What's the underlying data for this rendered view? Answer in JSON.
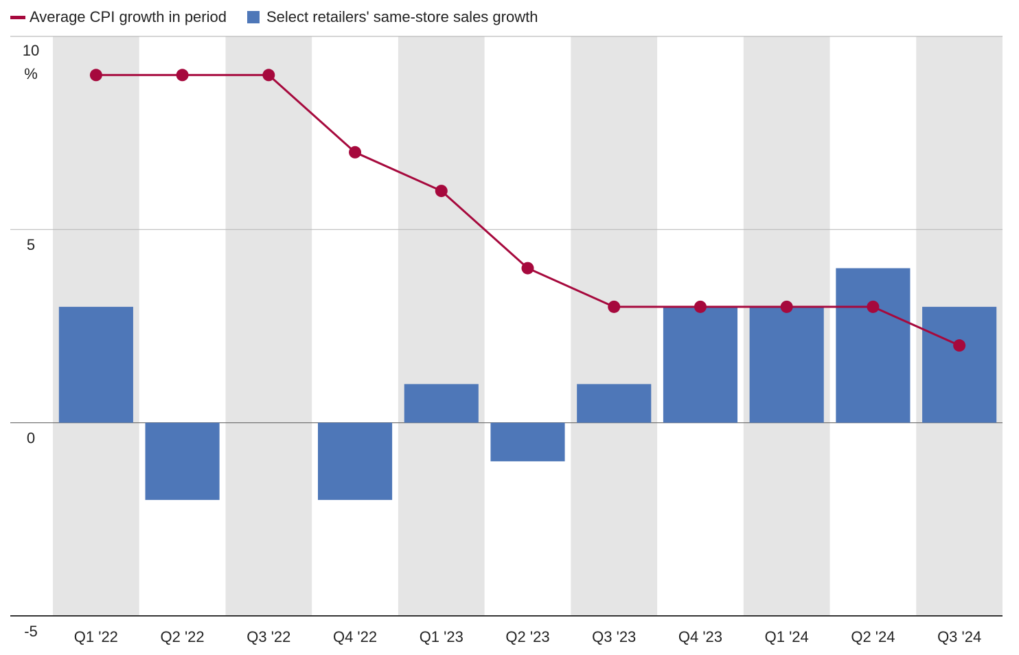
{
  "chart_data": {
    "type": "bar-line",
    "categories": [
      "Q1 '22",
      "Q2 '22",
      "Q3 '22",
      "Q4 '22",
      "Q1 '23",
      "Q2 '23",
      "Q3 '23",
      "Q4 '23",
      "Q1 '24",
      "Q2 '24",
      "Q3 '24"
    ],
    "series": [
      {
        "name": "Average CPI growth in period",
        "type": "line",
        "color": "#a6093d",
        "values": [
          9,
          9,
          9,
          7,
          6,
          4,
          3,
          3,
          3,
          3,
          2
        ]
      },
      {
        "name": "Select retailers' same-store sales growth",
        "type": "bar",
        "color": "#4e77b8",
        "values": [
          3,
          -2,
          0,
          -2,
          1,
          -1,
          1,
          3,
          3,
          4,
          3
        ]
      }
    ],
    "ylim": [
      -5,
      10
    ],
    "yticks": [
      -5,
      0,
      5,
      10
    ],
    "y_unit": "%",
    "grid": true
  }
}
